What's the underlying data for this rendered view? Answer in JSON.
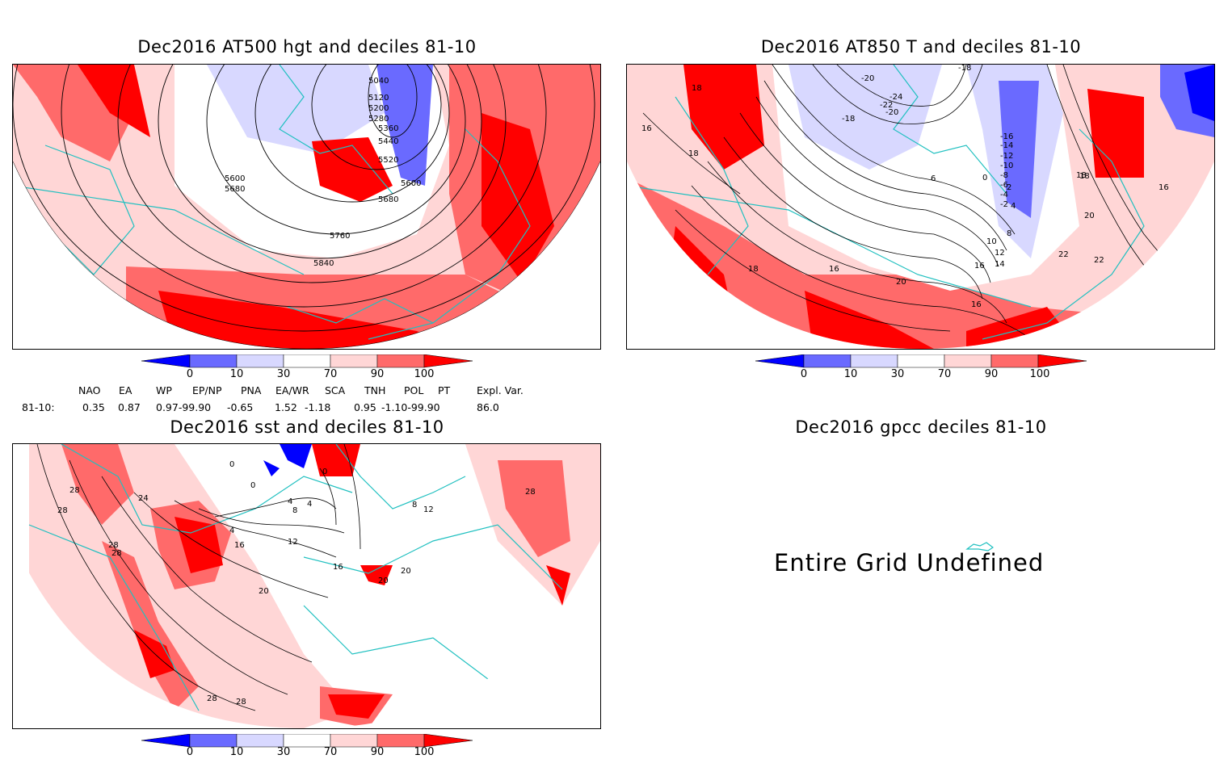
{
  "panels": {
    "hgt": {
      "title": "Dec2016 AT500 hgt and deciles 81-10",
      "contour_labels": [
        "5040",
        "5120",
        "5200",
        "5280",
        "5360",
        "5440",
        "5520",
        "5600",
        "5680",
        "5600",
        "5680",
        "5760",
        "5840"
      ]
    },
    "t850": {
      "title": "Dec2016 AT850 T and deciles 81-10",
      "contour_labels": [
        "18",
        "16",
        "18",
        "18",
        "16",
        "18",
        "-20",
        "-18",
        "-16",
        "-14",
        "-12",
        "-10",
        "-8",
        "-6",
        "-4",
        "-2",
        "0",
        "2",
        "4",
        "6",
        "8",
        "10",
        "12",
        "14",
        "16",
        "16",
        "18",
        "20",
        "22",
        "22",
        "20",
        "16",
        "-24",
        "-22",
        "-20",
        "-18"
      ]
    },
    "sst": {
      "title": "Dec2016 sst and deciles 81-10",
      "contour_labels": [
        "28",
        "28",
        "24",
        "28",
        "28",
        "20",
        "16",
        "12",
        "8",
        "4",
        "4",
        "4",
        "0",
        "0",
        "0",
        "16",
        "20",
        "20",
        "28",
        "28",
        "28",
        "8",
        "12"
      ]
    },
    "gpcc": {
      "title": "Dec2016 gpcc deciles 81-10",
      "message": "Entire Grid Undefined"
    }
  },
  "colorbar": {
    "labels": [
      "0",
      "10",
      "30",
      "70",
      "90",
      "100"
    ],
    "colors": [
      "#0000ff",
      "#6a6aff",
      "#d8d8ff",
      "#ffffff",
      "#ffd6d6",
      "#ff6a6a",
      "#ff0000"
    ]
  },
  "indices": {
    "header": [
      "NAO",
      "EA",
      "WP",
      "EP/NP",
      "PNA",
      "EA/WR",
      "SCA",
      "TNH",
      "POL",
      "PT",
      "Expl. Var."
    ],
    "row_label": "81-10:",
    "values": [
      "0.35",
      "0.87",
      "0.97-99.90",
      "-0.65",
      "1.52",
      "-1.18",
      "0.95",
      "-1.10-99.90",
      "86.0"
    ]
  },
  "map_colors": {
    "coast": "#20c0c0",
    "red": "#ff0000",
    "mid_red": "#ff6a6a",
    "light_red": "#ffd6d6",
    "blue": "#0000ff",
    "mid_blue": "#6a6aff",
    "light_blue": "#d8d8ff"
  }
}
